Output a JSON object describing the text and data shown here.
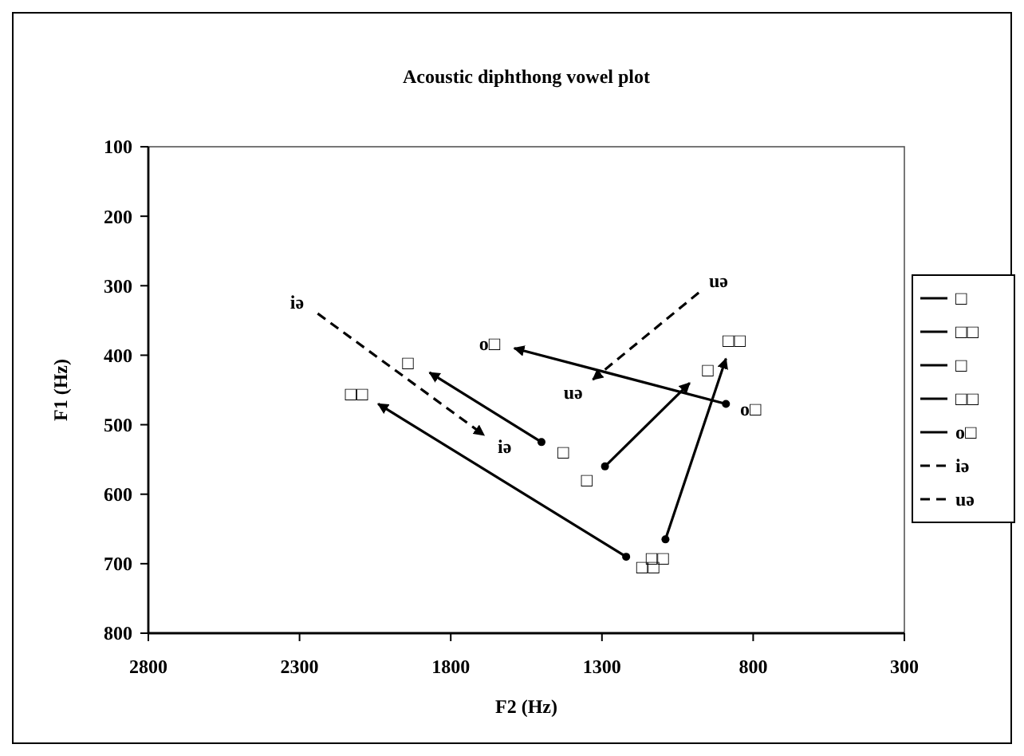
{
  "chart_data": {
    "type": "line",
    "title": "Acoustic diphthong vowel plot",
    "xlabel": "F2 (Hz)",
    "ylabel": "F1 (Hz)",
    "xlim": [
      2800,
      300
    ],
    "xticks": [
      2800,
      2300,
      1800,
      1300,
      800,
      300
    ],
    "ylim": [
      800,
      100
    ],
    "yticks": [
      100,
      200,
      300,
      400,
      500,
      600,
      700,
      800
    ],
    "grid": false,
    "legend": "right",
    "marker": "circle",
    "line_style": "solid",
    "series": [
      {
        "name": "□",
        "color": "#000000",
        "x": [
          1500,
          1870
        ],
        "values": [
          525,
          425
        ]
      },
      {
        "name": "□□",
        "color": "#000000",
        "x": [
          1220,
          2040
        ],
        "values": [
          690,
          470
        ]
      },
      {
        "name": "□",
        "color": "#000000",
        "x": [
          1290,
          1010
        ],
        "values": [
          560,
          440
        ]
      },
      {
        "name": "□□",
        "color": "#000000",
        "x": [
          1090,
          890
        ],
        "values": [
          665,
          405
        ]
      },
      {
        "name": "o□",
        "color": "#000000",
        "x": [
          890,
          1590
        ],
        "values": [
          470,
          390
        ]
      },
      {
        "name": "iə",
        "color": "#000000",
        "x": [
          2240,
          1690
        ],
        "values": [
          340,
          515
        ],
        "line_style": "dashed",
        "marker": "none"
      },
      {
        "name": "uə",
        "color": "#000000",
        "x": [
          980,
          1330
        ],
        "values": [
          310,
          435
        ],
        "line_style": "dashed",
        "marker": "none"
      }
    ],
    "annotations": [
      {
        "text": "iə",
        "x": 2240,
        "y": 340
      },
      {
        "text": "iə",
        "x": 1690,
        "y": 515
      },
      {
        "text": "□",
        "x": 1870,
        "y": 425
      },
      {
        "text": "□",
        "x": 1500,
        "y": 525
      },
      {
        "text": "□□",
        "x": 2040,
        "y": 470
      },
      {
        "text": "□□",
        "x": 1220,
        "y": 690
      },
      {
        "text": "□",
        "x": 1290,
        "y": 560
      },
      {
        "text": "□",
        "x": 1010,
        "y": 440
      },
      {
        "text": "□□",
        "x": 890,
        "y": 405
      },
      {
        "text": "□□",
        "x": 1090,
        "y": 665
      },
      {
        "text": "o□",
        "x": 1590,
        "y": 390
      },
      {
        "text": "o□",
        "x": 890,
        "y": 470
      },
      {
        "text": "uə",
        "x": 980,
        "y": 310
      },
      {
        "text": "uə",
        "x": 1330,
        "y": 435
      }
    ]
  }
}
